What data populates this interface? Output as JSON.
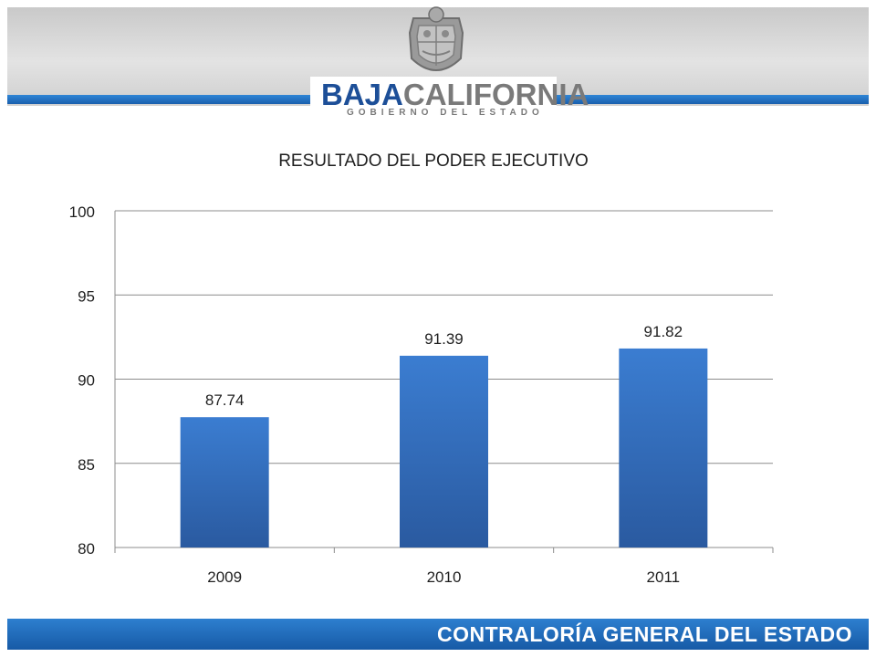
{
  "header": {
    "brand_part1": "BAJA",
    "brand_part2": "CALIFORNIA",
    "subtitle": "GOBIERNO DEL ESTADO"
  },
  "footer": {
    "text": "CONTRALORÍA GENERAL DEL ESTADO"
  },
  "colors": {
    "bar_top": "#3b7dd1",
    "bar_bottom": "#2a5aa0",
    "header_stripe": "#1f6cc0"
  },
  "chart_data": {
    "type": "bar",
    "title": "RESULTADO DEL PODER EJECUTIVO",
    "categories": [
      "2009",
      "2010",
      "2011"
    ],
    "values": [
      87.74,
      91.39,
      91.82
    ],
    "data_labels": [
      "87.74",
      "91.39",
      "91.82"
    ],
    "ylim": [
      80,
      100
    ],
    "yticks": [
      80,
      85,
      90,
      95,
      100
    ],
    "xlabel": "",
    "ylabel": "",
    "grid": true,
    "legend": "none"
  }
}
